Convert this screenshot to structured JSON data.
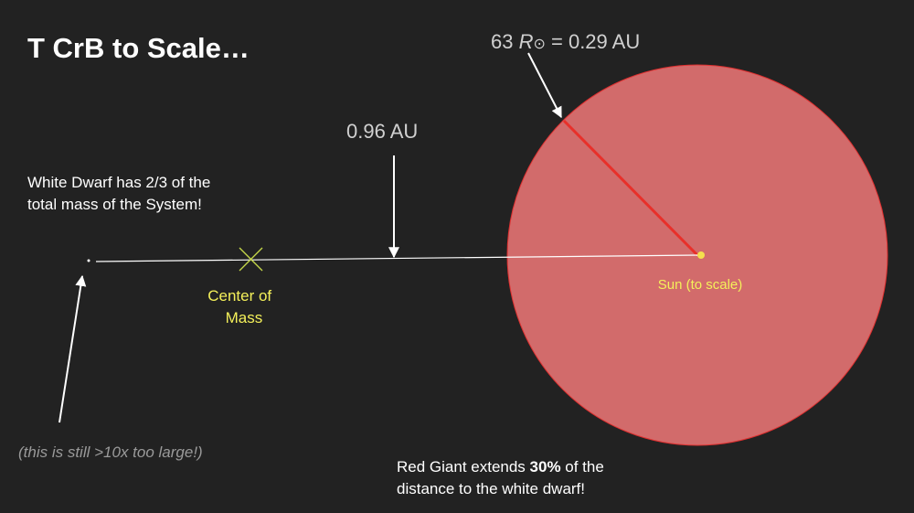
{
  "title": "T CrB to Scale…",
  "radius_label": {
    "parts": [
      "63 ",
      "R",
      "⊙",
      " = 0.29 AU"
    ]
  },
  "distance_label": "0.96 AU",
  "white_dwarf_note": {
    "lines": [
      "White Dwarf has 2/3 of the",
      "total mass of the System!"
    ]
  },
  "center_of_mass": {
    "lines": [
      "Center of",
      "Mass"
    ]
  },
  "sun_label": "Sun (to scale)",
  "white_dwarf_caption": "(this is still >10x too large!)",
  "red_giant_note": {
    "line1": [
      "Red Giant extends ",
      "30%",
      " of the"
    ],
    "line2": "distance to the white dwarf!"
  }
}
